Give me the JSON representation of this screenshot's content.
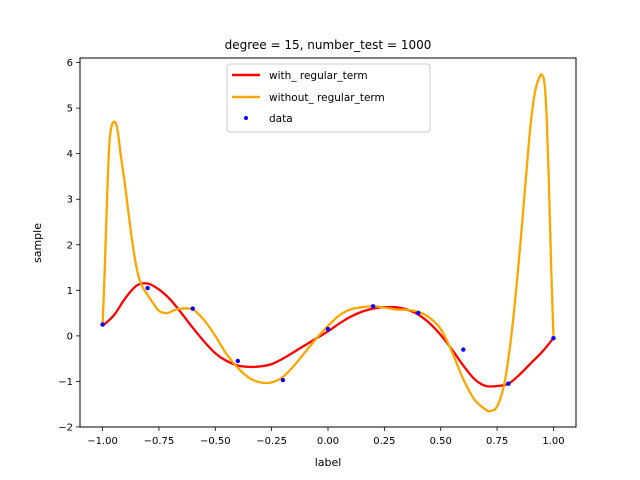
{
  "chart_data": {
    "type": "line",
    "title": "degree = 15, number_test = 1000",
    "xlabel": "label",
    "ylabel": "sample",
    "xlim": [
      -1.1,
      1.1
    ],
    "ylim": [
      -2,
      6.1
    ],
    "xticks": [
      -1.0,
      -0.75,
      -0.5,
      -0.25,
      0.0,
      0.25,
      0.5,
      0.75,
      1.0
    ],
    "xtick_labels": [
      "−1.00",
      "−0.75",
      "−0.50",
      "−0.25",
      "0.00",
      "0.25",
      "0.50",
      "0.75",
      "1.00"
    ],
    "yticks": [
      -2,
      -1,
      0,
      1,
      2,
      3,
      4,
      5,
      6
    ],
    "ytick_labels": [
      "−2",
      "−1",
      "0",
      "1",
      "2",
      "3",
      "4",
      "5",
      "6"
    ],
    "grid": false,
    "legend_position": "top-center",
    "series": [
      {
        "name": "with_ regular_term",
        "kind": "line",
        "color": "#ff0000",
        "x": [
          -1.0,
          -0.95,
          -0.9,
          -0.85,
          -0.8,
          -0.75,
          -0.7,
          -0.65,
          -0.6,
          -0.55,
          -0.5,
          -0.45,
          -0.4,
          -0.35,
          -0.3,
          -0.25,
          -0.2,
          -0.15,
          -0.1,
          -0.05,
          0.0,
          0.05,
          0.1,
          0.15,
          0.2,
          0.25,
          0.3,
          0.35,
          0.4,
          0.45,
          0.5,
          0.55,
          0.6,
          0.65,
          0.7,
          0.75,
          0.8,
          0.85,
          0.9,
          0.95,
          1.0
        ],
        "y": [
          0.22,
          0.45,
          0.82,
          1.1,
          1.15,
          1.02,
          0.8,
          0.5,
          0.18,
          -0.12,
          -0.38,
          -0.55,
          -0.65,
          -0.68,
          -0.67,
          -0.62,
          -0.5,
          -0.35,
          -0.2,
          -0.05,
          0.1,
          0.27,
          0.42,
          0.53,
          0.6,
          0.63,
          0.63,
          0.58,
          0.47,
          0.28,
          0.02,
          -0.3,
          -0.65,
          -0.95,
          -1.1,
          -1.1,
          -1.05,
          -0.85,
          -0.6,
          -0.35,
          -0.05
        ]
      },
      {
        "name": "without_ regular_term",
        "kind": "line",
        "color": "#ffa500",
        "x": [
          -1.0,
          -0.99,
          -0.98,
          -0.97,
          -0.96,
          -0.95,
          -0.94,
          -0.93,
          -0.92,
          -0.9,
          -0.88,
          -0.86,
          -0.84,
          -0.82,
          -0.8,
          -0.78,
          -0.75,
          -0.72,
          -0.7,
          -0.68,
          -0.65,
          -0.6,
          -0.55,
          -0.5,
          -0.45,
          -0.4,
          -0.35,
          -0.3,
          -0.25,
          -0.2,
          -0.15,
          -0.1,
          -0.05,
          0.0,
          0.05,
          0.1,
          0.15,
          0.2,
          0.25,
          0.3,
          0.35,
          0.4,
          0.45,
          0.5,
          0.55,
          0.6,
          0.65,
          0.7,
          0.72,
          0.75,
          0.78,
          0.8,
          0.82,
          0.84,
          0.86,
          0.88,
          0.9,
          0.92,
          0.94,
          0.95,
          0.96,
          0.97,
          0.98,
          0.99,
          1.0
        ],
        "y": [
          0.2,
          1.5,
          3.0,
          4.2,
          4.6,
          4.7,
          4.65,
          4.4,
          4.0,
          3.3,
          2.5,
          1.8,
          1.3,
          1.05,
          0.9,
          0.75,
          0.55,
          0.5,
          0.52,
          0.57,
          0.6,
          0.58,
          0.35,
          0.0,
          -0.4,
          -0.7,
          -0.92,
          -1.02,
          -1.02,
          -0.9,
          -0.65,
          -0.35,
          -0.05,
          0.22,
          0.45,
          0.58,
          0.63,
          0.65,
          0.62,
          0.58,
          0.57,
          0.53,
          0.4,
          0.15,
          -0.35,
          -0.95,
          -1.4,
          -1.62,
          -1.65,
          -1.55,
          -1.1,
          -0.5,
          0.3,
          1.3,
          2.4,
          3.6,
          4.7,
          5.4,
          5.7,
          5.72,
          5.55,
          4.8,
          3.3,
          1.5,
          0.0
        ]
      },
      {
        "name": "data",
        "kind": "scatter",
        "color": "#0000ff",
        "x": [
          -1.0,
          -0.8,
          -0.6,
          -0.4,
          -0.2,
          0.0,
          0.2,
          0.4,
          0.6,
          0.8,
          1.0
        ],
        "y": [
          0.25,
          1.05,
          0.6,
          -0.55,
          -0.97,
          0.15,
          0.65,
          0.5,
          -0.3,
          -1.05,
          -0.05
        ]
      }
    ]
  }
}
